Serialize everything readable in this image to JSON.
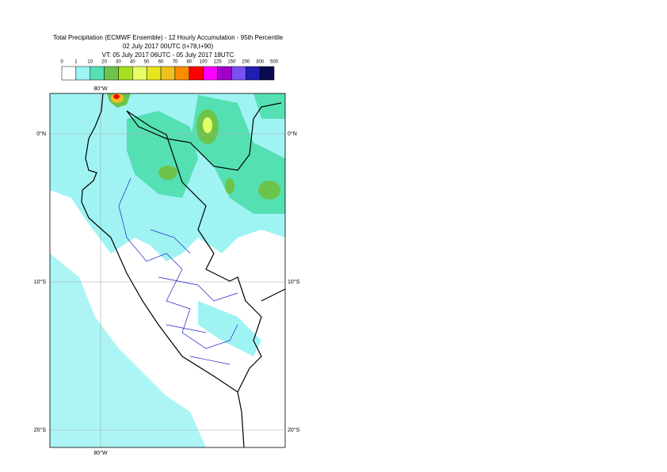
{
  "title": [
    "Total Precipitation (ECMWF Ensemble) - 12 Hourly Accumulation - 95th Percentile",
    "02 July 2017 00UTC (t+78,t+90)",
    "VT: 05 July 2017 06UTC - 05 July 2017 18UTC"
  ],
  "legend": {
    "labels": [
      0,
      1,
      10,
      20,
      30,
      40,
      50,
      60,
      70,
      80,
      100,
      125,
      150,
      200,
      300,
      500
    ],
    "colors": [
      "#ffffff",
      "#9ff3f3",
      "#55e0b4",
      "#6cc34a",
      "#a6e01e",
      "#e6ff66",
      "#e6e61e",
      "#f0c01e",
      "#ff8c00",
      "#ff0000",
      "#ff00ff",
      "#a000c8",
      "#7850f0",
      "#1e1eb4",
      "#0a0a50"
    ]
  },
  "map": {
    "top_labels": [
      "80°W"
    ],
    "bottom_labels": [
      "80°W"
    ],
    "left_labels": [
      "0°N",
      "10°S",
      "20°S"
    ],
    "right_labels": [
      "0°N",
      "10°S",
      "20°S"
    ]
  }
}
